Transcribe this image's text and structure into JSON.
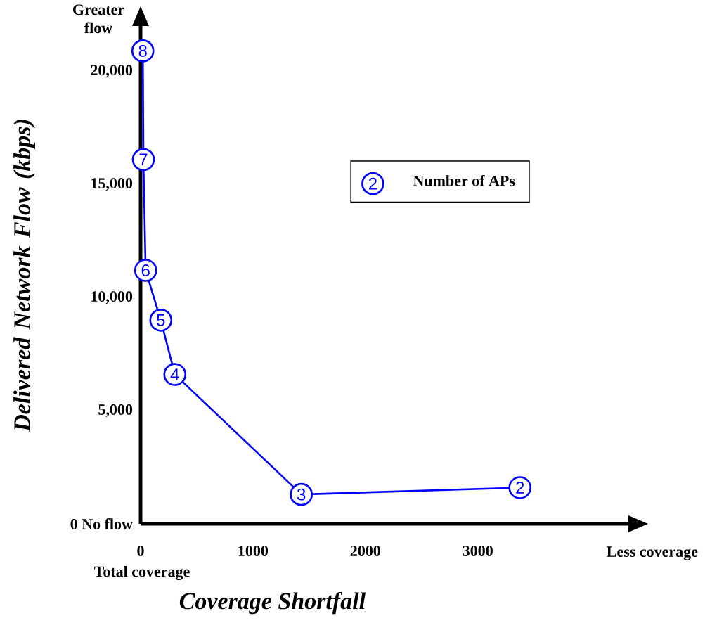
{
  "chart_data": {
    "type": "line",
    "xlabel": "Coverage Shortfall",
    "ylabel": "Delivered Network Flow (kbps)",
    "x": [
      20,
      25,
      45,
      180,
      305,
      1430,
      3375
    ],
    "series": [
      {
        "name": "Number of APs",
        "color": "#0000ff",
        "values": [
          20900,
          16100,
          11200,
          9000,
          6600,
          1300,
          1600
        ]
      }
    ],
    "xlim": [
      0,
      4340
    ],
    "ylim": [
      0,
      22000
    ],
    "xticks": [
      0,
      1000,
      2000,
      3000
    ],
    "yticks": [
      {
        "value": 0,
        "label": "0 No flow"
      },
      {
        "value": 5000,
        "label": "5,000"
      },
      {
        "value": 10000,
        "label": "10,000"
      },
      {
        "value": 15000,
        "label": "15,000"
      },
      {
        "value": 20000,
        "label": "20,000"
      }
    ],
    "annotations": [
      {
        "text": "8",
        "x": 20,
        "y": 20900
      },
      {
        "text": "7",
        "x": 25,
        "y": 16100
      },
      {
        "text": "6",
        "x": 45,
        "y": 11200
      },
      {
        "text": "5",
        "x": 180,
        "y": 9000
      },
      {
        "text": "4",
        "x": 305,
        "y": 6600
      },
      {
        "text": "3",
        "x": 1430,
        "y": 1300
      },
      {
        "text": "2",
        "x": 3375,
        "y": 1600
      },
      "Greater flow",
      "Total coverage",
      "Less coverage"
    ],
    "marker": "circle",
    "grid": false,
    "legend": "right"
  }
}
